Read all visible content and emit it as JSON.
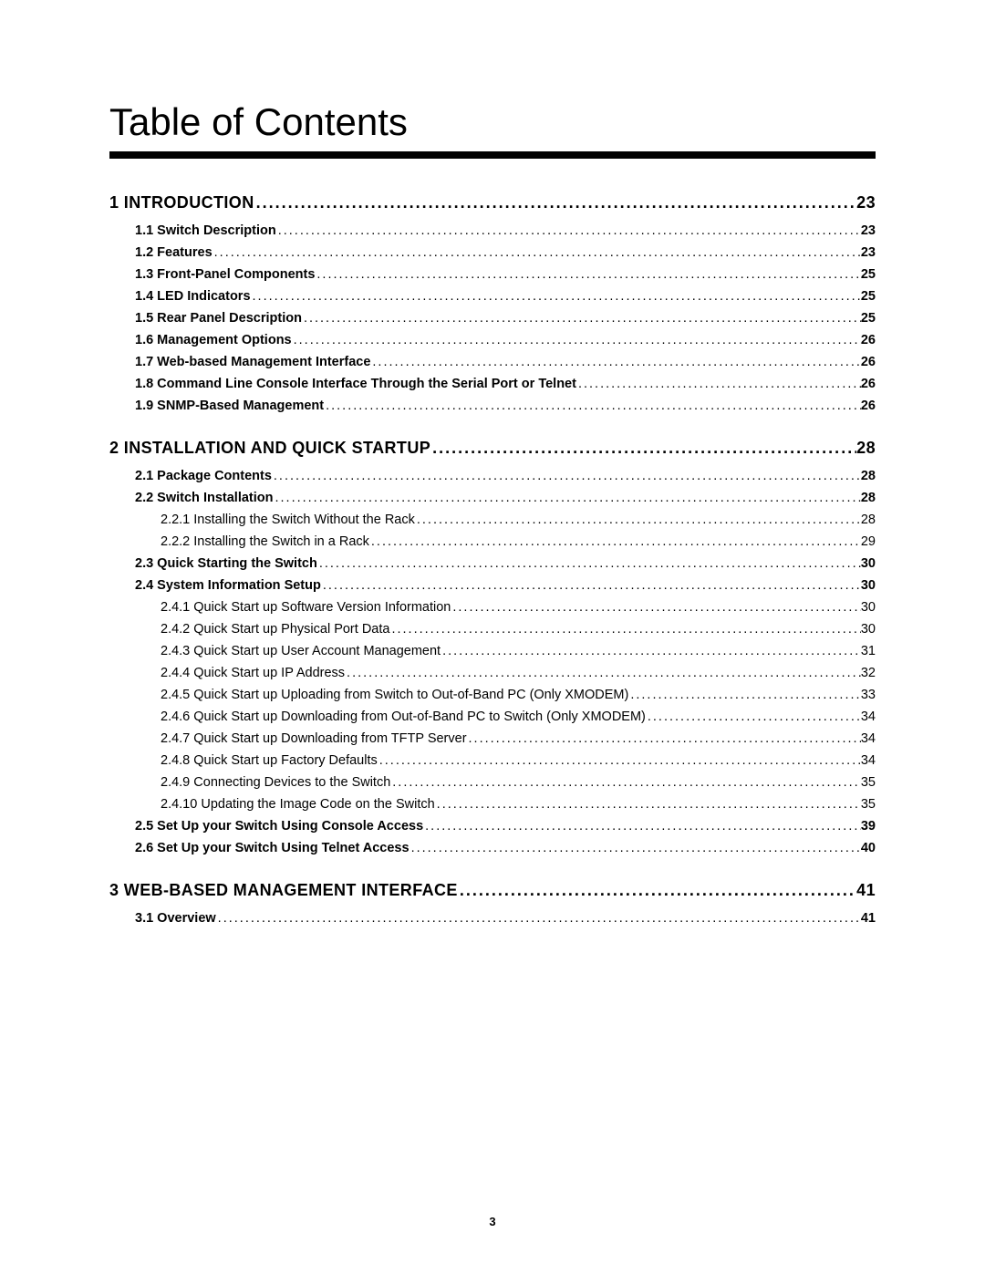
{
  "title": "Table of Contents",
  "footer_page_number": "3",
  "dot_fill": "........................................................................................................................................................................................................",
  "entries": [
    {
      "level": 1,
      "label": "1 INTRODUCTION",
      "page": "23"
    },
    {
      "level": 2,
      "label": "1.1 Switch Description",
      "page": "23"
    },
    {
      "level": 2,
      "label": "1.2 Features",
      "page": "23"
    },
    {
      "level": 2,
      "label": "1.3 Front-Panel Components",
      "page": "25"
    },
    {
      "level": 2,
      "label": "1.4 LED Indicators",
      "page": "25"
    },
    {
      "level": 2,
      "label": "1.5 Rear Panel Description",
      "page": "25"
    },
    {
      "level": 2,
      "label": "1.6 Management Options",
      "page": "26"
    },
    {
      "level": 2,
      "label": "1.7 Web-based Management Interface",
      "page": "26"
    },
    {
      "level": 2,
      "label": "1.8 Command Line Console Interface Through the Serial Port or Telnet",
      "page": "26"
    },
    {
      "level": 2,
      "label": "1.9 SNMP-Based Management",
      "page": "26"
    },
    {
      "level": 1,
      "label": "2 INSTALLATION AND QUICK STARTUP",
      "page": "28"
    },
    {
      "level": 2,
      "label": "2.1 Package Contents",
      "page": "28"
    },
    {
      "level": 2,
      "label": "2.2 Switch Installation",
      "page": "28"
    },
    {
      "level": 3,
      "label": "2.2.1 Installing the Switch Without the Rack",
      "page": "28"
    },
    {
      "level": 3,
      "label": "2.2.2 Installing the Switch in a Rack",
      "page": "29"
    },
    {
      "level": 2,
      "label": "2.3 Quick Starting the Switch",
      "page": "30"
    },
    {
      "level": 2,
      "label": "2.4 System Information Setup",
      "page": "30"
    },
    {
      "level": 3,
      "label": "2.4.1 Quick Start up Software Version Information",
      "page": "30"
    },
    {
      "level": 3,
      "label": "2.4.2 Quick Start up Physical Port Data",
      "page": "30"
    },
    {
      "level": 3,
      "label": "2.4.3 Quick Start up User Account Management",
      "page": "31"
    },
    {
      "level": 3,
      "label": "2.4.4 Quick Start up IP Address",
      "page": "32"
    },
    {
      "level": 3,
      "label": "2.4.5 Quick Start up Uploading from Switch to Out-of-Band PC (Only XMODEM)",
      "page": "33"
    },
    {
      "level": 3,
      "label": "2.4.6 Quick Start up Downloading from Out-of-Band PC to Switch (Only XMODEM)",
      "page": "34"
    },
    {
      "level": 3,
      "label": "2.4.7 Quick Start up Downloading from TFTP Server",
      "page": "34"
    },
    {
      "level": 3,
      "label": "2.4.8 Quick Start up Factory Defaults",
      "page": "34"
    },
    {
      "level": 3,
      "label": "2.4.9 Connecting Devices to the Switch",
      "page": "35"
    },
    {
      "level": 3,
      "label": "2.4.10 Updating the Image Code on the Switch",
      "page": "35"
    },
    {
      "level": 2,
      "label": "2.5 Set Up your Switch Using Console Access",
      "page": "39"
    },
    {
      "level": 2,
      "label": "2.6 Set Up your Switch Using Telnet Access",
      "page": "40"
    },
    {
      "level": 1,
      "label": "3 WEB-BASED MANAGEMENT INTERFACE",
      "page": "41"
    },
    {
      "level": 2,
      "label": "3.1 Overview",
      "page": "41"
    }
  ]
}
